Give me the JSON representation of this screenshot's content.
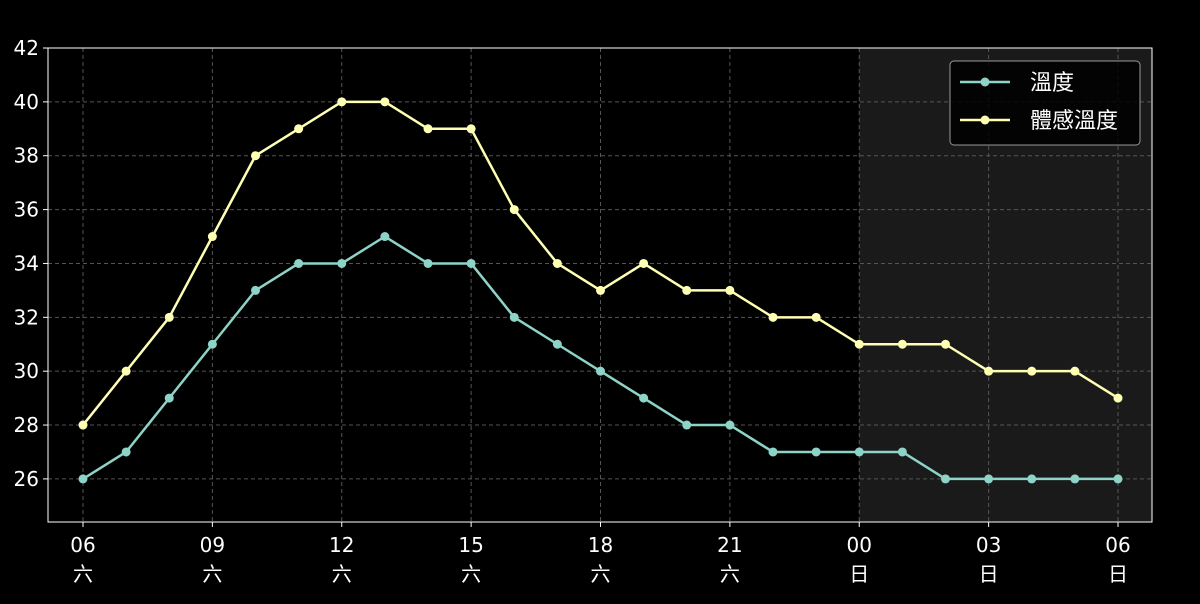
{
  "chart_data": {
    "type": "line",
    "x": [
      "06",
      "07",
      "08",
      "09",
      "10",
      "11",
      "12",
      "13",
      "14",
      "15",
      "16",
      "17",
      "18",
      "19",
      "20",
      "21",
      "22",
      "23",
      "00",
      "01",
      "02",
      "03",
      "04",
      "05",
      "06"
    ],
    "x_ticks": [
      {
        "index": 0,
        "hour": "06",
        "day": "六"
      },
      {
        "index": 3,
        "hour": "09",
        "day": "六"
      },
      {
        "index": 6,
        "hour": "12",
        "day": "六"
      },
      {
        "index": 9,
        "hour": "15",
        "day": "六"
      },
      {
        "index": 12,
        "hour": "18",
        "day": "六"
      },
      {
        "index": 15,
        "hour": "21",
        "day": "六"
      },
      {
        "index": 18,
        "hour": "00",
        "day": "日"
      },
      {
        "index": 21,
        "hour": "03",
        "day": "日"
      },
      {
        "index": 24,
        "hour": "06",
        "day": "日"
      }
    ],
    "series": [
      {
        "name": "溫度",
        "color": "#8dd3c7",
        "values": [
          26,
          27,
          29,
          31,
          33,
          34,
          34,
          35,
          34,
          34,
          32,
          31,
          30,
          29,
          28,
          28,
          27,
          27,
          27,
          27,
          26,
          26,
          26,
          26,
          26
        ]
      },
      {
        "name": "體感溫度",
        "color": "#ffffb3",
        "values": [
          28,
          30,
          32,
          35,
          38,
          39,
          40,
          40,
          39,
          39,
          36,
          34,
          33,
          34,
          33,
          33,
          32,
          32,
          31,
          31,
          31,
          30,
          30,
          30,
          29
        ]
      }
    ],
    "y_ticks": [
      26,
      28,
      30,
      32,
      34,
      36,
      38,
      40,
      42
    ],
    "ylim": [
      24.4,
      42
    ],
    "grid": true,
    "legend_position": "top-right",
    "shaded_from_index": 18,
    "shade_color": "#1a1a1a",
    "background": "#000000",
    "axis_color": "#ffffff"
  }
}
